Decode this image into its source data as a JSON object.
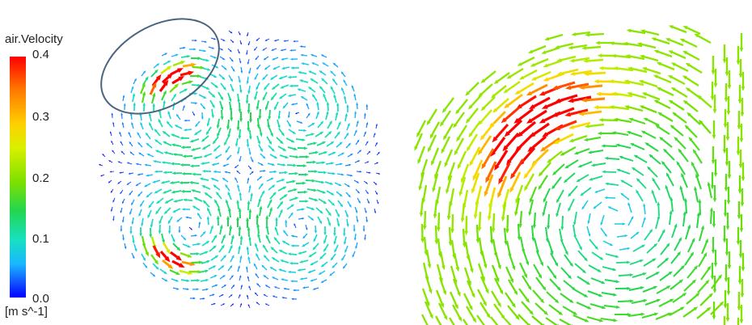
{
  "legend": {
    "title": "air.Velocity",
    "ticks": [
      "0.4",
      "0.3",
      "0.2",
      "0.1",
      "0.0"
    ],
    "units": "[m s^-1]",
    "range": [
      0.0,
      0.4
    ]
  },
  "colors": {
    "highlight_ellipse": "#4a6580"
  }
}
